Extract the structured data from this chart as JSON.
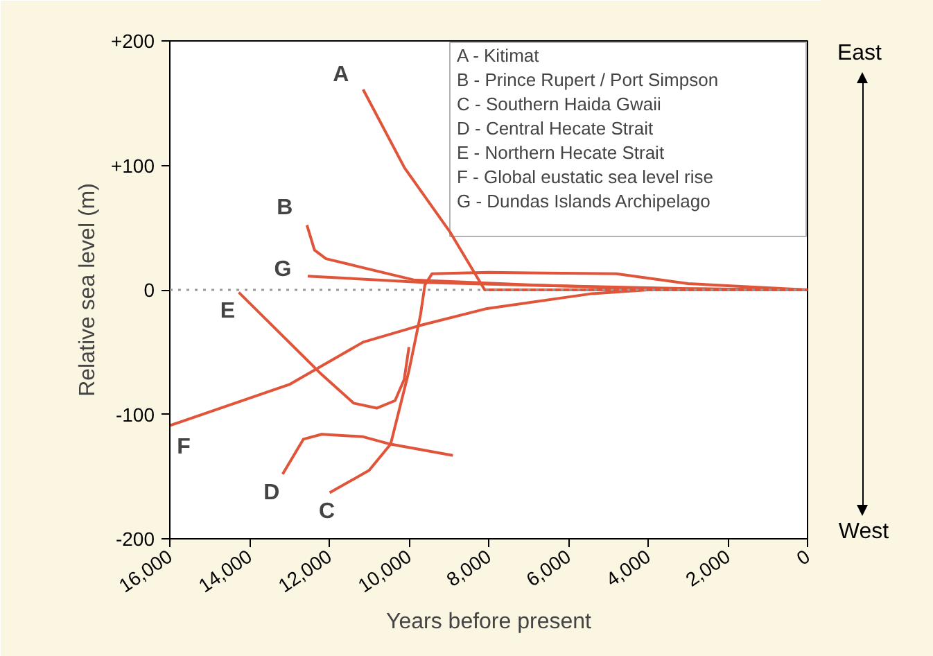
{
  "chart_data": {
    "type": "line",
    "xlabel": "Years before present",
    "ylabel": "Relative sea level (m)",
    "xlim": [
      16000,
      0
    ],
    "ylim": [
      -200,
      200
    ],
    "xticks": [
      {
        "value": 16000,
        "label": "16,000"
      },
      {
        "value": 14000,
        "label": "14,000"
      },
      {
        "value": 12000,
        "label": "12,000"
      },
      {
        "value": 10000,
        "label": "10,000"
      },
      {
        "value": 8000,
        "label": "8,000"
      },
      {
        "value": 6000,
        "label": "6,000"
      },
      {
        "value": 4000,
        "label": "4,000"
      },
      {
        "value": 2000,
        "label": "2,000"
      },
      {
        "value": 0,
        "label": "0"
      }
    ],
    "yticks": [
      {
        "value": -200,
        "label": "-200"
      },
      {
        "value": -100,
        "label": "-100"
      },
      {
        "value": 0,
        "label": "0"
      },
      {
        "value": 100,
        "label": "+100"
      },
      {
        "value": 200,
        "label": "+200"
      }
    ],
    "grid": false,
    "marker": "none",
    "line_style": "solid",
    "ref_lines": [
      {
        "axis": "y",
        "value": 0,
        "label": null,
        "color": "#999999",
        "line_style": "dotted"
      }
    ],
    "series": [
      {
        "name": "A",
        "color": "#e0553a",
        "x": [
          11150,
          10110,
          8960,
          8100,
          0
        ],
        "values": [
          161,
          98,
          46,
          0,
          0
        ]
      },
      {
        "name": "B",
        "color": "#e0553a",
        "x": [
          12560,
          12370,
          12080,
          9880,
          7000,
          4000,
          0
        ],
        "values": [
          52,
          32,
          25,
          8,
          4,
          1,
          0
        ]
      },
      {
        "name": "C",
        "color": "#e0553a",
        "x": [
          11990,
          11000,
          10460,
          10000,
          9710,
          9600,
          9420,
          8000,
          4800,
          3000,
          0
        ],
        "values": [
          -163,
          -145,
          -124,
          -65,
          -20,
          4,
          13,
          14,
          13,
          5,
          0
        ]
      },
      {
        "name": "D",
        "color": "#e0553a",
        "x": [
          13170,
          12650,
          12190,
          11150,
          10460,
          8900
        ],
        "values": [
          -148,
          -120,
          -116,
          -118,
          -124,
          -133
        ]
      },
      {
        "name": "E",
        "color": "#e0553a",
        "x": [
          14270,
          13230,
          12190,
          11390,
          10810,
          10350,
          10120,
          10000
        ],
        "values": [
          -2,
          -35,
          -68,
          -91,
          -95,
          -89,
          -72,
          -46
        ]
      },
      {
        "name": "F",
        "color": "#e0553a",
        "x": [
          16000,
          13000,
          11150,
          9770,
          8040,
          5400,
          4000,
          0
        ],
        "values": [
          -109,
          -76,
          -42,
          -29,
          -15,
          -3,
          0,
          0
        ]
      },
      {
        "name": "G",
        "color": "#e0553a",
        "x": [
          12540,
          9650,
          6000,
          3000,
          0
        ],
        "values": [
          11,
          6,
          3,
          1,
          0
        ]
      }
    ],
    "annotations": [
      "A - Kitimat",
      "B - Prince Rupert / Port Simpson",
      "C - Southern Haida Gwaii",
      "D - Central Hecate Strait",
      "E - Northern Hecate Strait",
      "F - Global eustatic sea level rise",
      "G - Dundas Islands Archipelago",
      "East",
      "West"
    ]
  }
}
